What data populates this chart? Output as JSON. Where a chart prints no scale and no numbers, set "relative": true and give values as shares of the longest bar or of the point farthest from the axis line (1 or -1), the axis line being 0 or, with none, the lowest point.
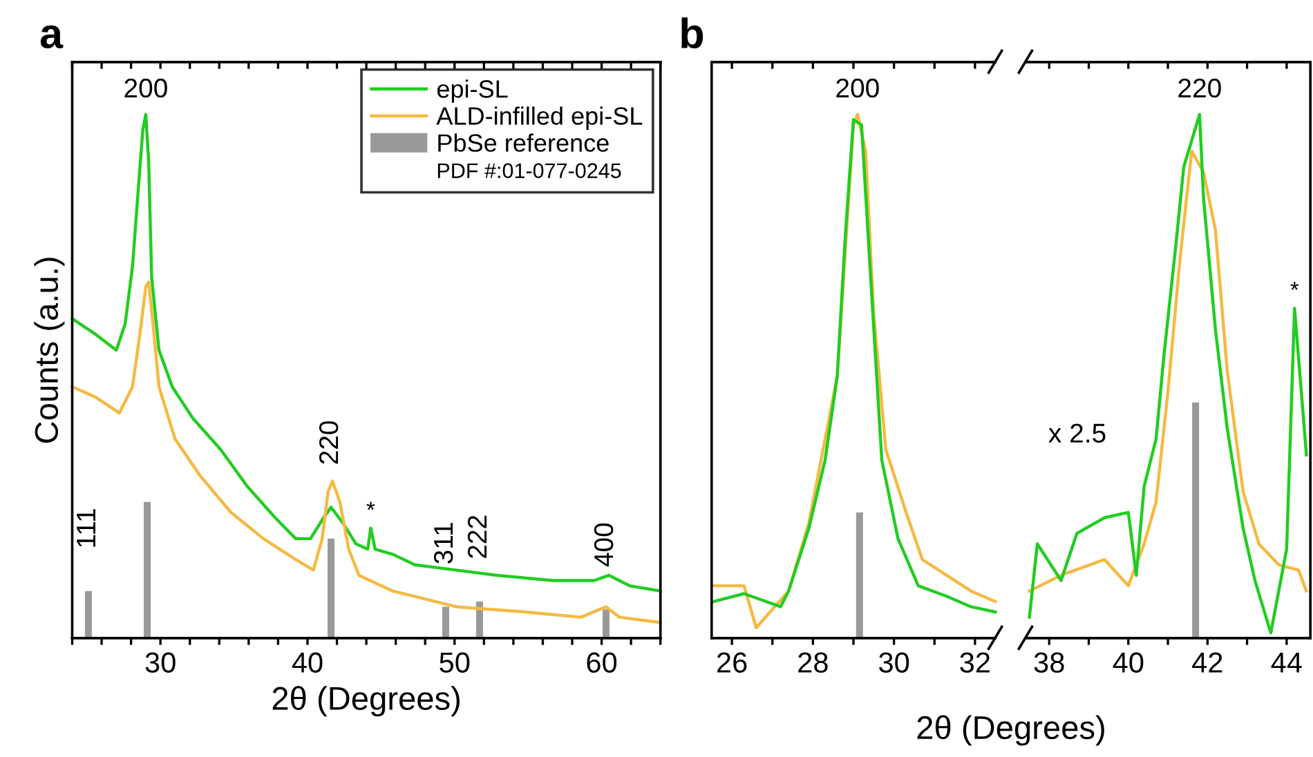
{
  "chart_data": [
    {
      "type": "line",
      "relative": true,
      "xlabel": "2θ (Degrees)",
      "ylabel": "Counts (a.u.)",
      "xlim": [
        24,
        64
      ],
      "tick_labels": "x",
      "legend": "top right",
      "grid": false,
      "xticks": [
        {
          "value": 24,
          "label": null
        },
        {
          "value": 26,
          "label": null
        },
        {
          "value": 28,
          "label": null
        },
        30,
        {
          "value": 32,
          "label": null
        },
        {
          "value": 34,
          "label": null
        },
        {
          "value": 36,
          "label": null
        },
        {
          "value": 38,
          "label": null
        },
        40,
        {
          "value": 42,
          "label": null
        },
        {
          "value": 44,
          "label": null
        },
        {
          "value": 46,
          "label": null
        },
        {
          "value": 48,
          "label": null
        },
        50,
        {
          "value": 52,
          "label": null
        },
        {
          "value": 54,
          "label": null
        },
        {
          "value": 56,
          "label": null
        },
        {
          "value": 58,
          "label": null
        },
        60,
        {
          "value": 62,
          "label": null
        },
        {
          "value": 64,
          "label": null
        }
      ],
      "series": [
        {
          "name": "epi-SL",
          "color": "#22cc22",
          "x": [
            24.0,
            25.6,
            27.0,
            27.6,
            28.1,
            28.5,
            28.8,
            29.0,
            29.2,
            29.4,
            29.9,
            30.8,
            32.2,
            34.1,
            35.9,
            37.8,
            39.2,
            40.2,
            41.1,
            41.6,
            42.4,
            43.3,
            44.1,
            44.3,
            44.6,
            45.8,
            47.3,
            50.1,
            52.9,
            56.7,
            59.5,
            60.5,
            61.9,
            64.0
          ],
          "values": [
            0.61,
            0.58,
            0.55,
            0.6,
            0.71,
            0.86,
            0.97,
            1.0,
            0.91,
            0.69,
            0.55,
            0.48,
            0.42,
            0.36,
            0.29,
            0.23,
            0.19,
            0.19,
            0.23,
            0.25,
            0.22,
            0.18,
            0.17,
            0.21,
            0.17,
            0.16,
            0.14,
            0.13,
            0.12,
            0.11,
            0.11,
            0.12,
            0.1,
            0.09
          ]
        },
        {
          "name": "ALD-infilled epi-SL",
          "color": "#f5b942",
          "x": [
            24.0,
            25.6,
            27.2,
            28.1,
            28.6,
            29.0,
            29.2,
            29.5,
            29.9,
            31.0,
            32.7,
            34.8,
            37.0,
            39.2,
            40.4,
            41.0,
            41.4,
            41.7,
            42.2,
            42.8,
            43.5,
            45.8,
            50.1,
            54.8,
            58.6,
            60.3,
            61.2,
            64.0
          ],
          "values": [
            0.48,
            0.46,
            0.43,
            0.48,
            0.58,
            0.67,
            0.68,
            0.6,
            0.48,
            0.38,
            0.31,
            0.24,
            0.19,
            0.15,
            0.13,
            0.19,
            0.28,
            0.3,
            0.26,
            0.17,
            0.12,
            0.09,
            0.06,
            0.05,
            0.04,
            0.06,
            0.04,
            0.03
          ]
        },
        {
          "name": "PbSe reference",
          "type": "bar",
          "color": "#999999",
          "x": [
            25.1,
            29.1,
            41.6,
            49.4,
            51.7,
            60.3
          ],
          "values": [
            0.09,
            0.26,
            0.19,
            0.06,
            0.07,
            0.055
          ]
        }
      ],
      "annotations": [
        "a",
        "PDF #:01-077-0245",
        {
          "text": "111",
          "x": 25.1,
          "y": 0.09
        },
        {
          "text": "200",
          "x": 29.0,
          "y": 1.0
        },
        {
          "text": "220",
          "x": 41.6,
          "y": 0.25
        },
        {
          "text": "*",
          "x": 44.3,
          "y": 0.21
        },
        {
          "text": "311",
          "x": 49.4,
          "y": 0.06
        },
        {
          "text": "222",
          "x": 51.7,
          "y": 0.07
        },
        {
          "text": "400",
          "x": 60.3,
          "y": 0.055
        }
      ]
    },
    {
      "type": "line",
      "relative": true,
      "xlabel": "2θ (Degrees)",
      "xlim": [
        25.5,
        32.5
      ],
      "tick_labels": "x",
      "grid": false,
      "xticks": [
        26,
        {
          "value": 27,
          "label": null
        },
        28,
        {
          "value": 29,
          "label": null
        },
        30,
        {
          "value": 31,
          "label": null
        },
        32
      ],
      "series": [
        {
          "color": "#f5b942",
          "x": [
            25.55,
            26.3,
            26.6,
            27.4,
            27.9,
            28.6,
            29.0,
            29.1,
            29.3,
            29.5,
            29.8,
            30.3,
            30.7,
            31.3,
            31.9,
            32.5
          ],
          "values": [
            0.1,
            0.1,
            0.02,
            0.09,
            0.22,
            0.5,
            0.98,
            1.0,
            0.93,
            0.62,
            0.36,
            0.24,
            0.15,
            0.12,
            0.09,
            0.07
          ]
        },
        {
          "color": "#22cc22",
          "x": [
            25.55,
            26.3,
            27.2,
            27.4,
            27.9,
            28.3,
            28.6,
            28.8,
            29.0,
            29.2,
            29.4,
            29.7,
            30.1,
            30.6,
            31.3,
            31.9,
            32.5
          ],
          "values": [
            0.07,
            0.085,
            0.06,
            0.09,
            0.21,
            0.34,
            0.5,
            0.77,
            0.99,
            0.98,
            0.72,
            0.34,
            0.19,
            0.1,
            0.08,
            0.06,
            0.05
          ]
        },
        {
          "type": "bar",
          "color": "#999999",
          "x": [
            29.15
          ],
          "values": [
            0.24
          ]
        }
      ],
      "annotations": [
        "b",
        {
          "text": "200",
          "x": 29.1,
          "y": 1.0
        }
      ]
    },
    {
      "type": "line",
      "relative": true,
      "xlim": [
        37.4,
        44.6
      ],
      "tick_labels": "x",
      "grid": false,
      "xticks": [
        38,
        {
          "value": 39,
          "label": null
        },
        40,
        {
          "value": 41,
          "label": null
        },
        42,
        {
          "value": 43,
          "label": null
        },
        44
      ],
      "series": [
        {
          "color": "#f5b942",
          "x": [
            37.5,
            38.3,
            39.4,
            40.0,
            40.4,
            40.7,
            41.0,
            41.3,
            41.6,
            41.9,
            42.2,
            42.5,
            42.9,
            43.3,
            43.8,
            44.3,
            44.5
          ],
          "values": [
            0.09,
            0.12,
            0.15,
            0.1,
            0.18,
            0.26,
            0.47,
            0.72,
            0.93,
            0.89,
            0.78,
            0.51,
            0.28,
            0.18,
            0.14,
            0.13,
            0.09
          ]
        },
        {
          "color": "#22cc22",
          "x": [
            37.5,
            37.7,
            38.3,
            38.7,
            39.4,
            40.0,
            40.2,
            40.4,
            40.7,
            40.9,
            41.2,
            41.4,
            41.6,
            41.8,
            41.9,
            42.2,
            42.5,
            42.9,
            43.2,
            43.6,
            44.0,
            44.2,
            44.5
          ],
          "values": [
            0.04,
            0.18,
            0.11,
            0.2,
            0.23,
            0.24,
            0.12,
            0.29,
            0.38,
            0.54,
            0.75,
            0.9,
            0.95,
            1.0,
            0.84,
            0.59,
            0.4,
            0.21,
            0.11,
            0.01,
            0.17,
            0.63,
            0.35
          ]
        },
        {
          "type": "bar",
          "color": "#999999",
          "x": [
            41.7
          ],
          "values": [
            0.45
          ]
        }
      ],
      "annotations": [
        "x 2.5",
        {
          "text": "220",
          "x": 41.8,
          "y": 1.0
        },
        {
          "text": "*",
          "x": 44.2,
          "y": 0.63
        }
      ]
    }
  ]
}
